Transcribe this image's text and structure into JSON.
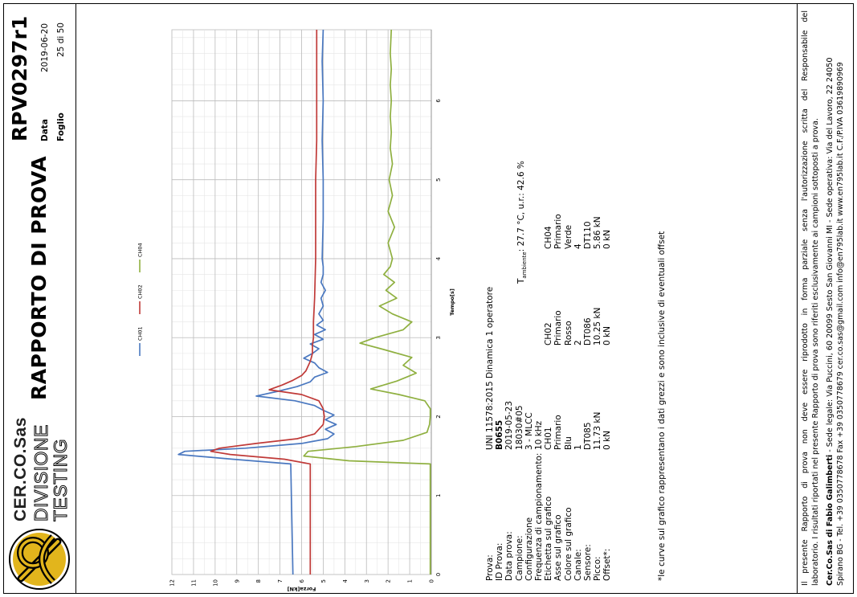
{
  "header": {
    "brand_lines": [
      "CER.CO.Sas",
      "DIVISIONE",
      "TESTING"
    ],
    "title": "RAPPORTO DI PROVA",
    "report_id": "RPV0297r1",
    "data_label": "Data",
    "data_value": "2019-06-20",
    "foglio_label": "Foglio",
    "foglio_value": "25 di 50"
  },
  "info": {
    "labels": [
      "Prova:",
      "ID Prova:",
      "Data prova:",
      "Campione:",
      "Configurazione",
      "Frequenza di campionamento:",
      "Etichetta sul grafico",
      "Asse sul grafico",
      "Colore sul grafico",
      "Canale:",
      "Sensore:",
      "Picco:",
      "Offset*:"
    ],
    "prova": "UNI 11578:2015 Dinamica 1 operatore",
    "id_prova": "B0655",
    "data_prova": "2019-05-23",
    "campione": "18030#05",
    "configurazione": "3 - MLCC",
    "frequenza": "10 kHz",
    "ambient_prefix": "T",
    "ambient_sub": "ambiente",
    "ambient_value": ": 27.7 °C, u.r.: 42.6 %",
    "channels": [
      {
        "etichetta": "CH01",
        "asse": "Primario",
        "colore": "Blu",
        "canale": "1",
        "sensore": "DT085",
        "picco": "11.73 kN",
        "offset": "0 kN"
      },
      {
        "etichetta": "CH02",
        "asse": "Primario",
        "colore": "Rosso",
        "canale": "2",
        "sensore": "DT086",
        "picco": "10.25 kN",
        "offset": "0 kN"
      },
      {
        "etichetta": "CH04",
        "asse": "Primario",
        "colore": "Verde",
        "canale": "4",
        "sensore": "DT110",
        "picco": "5.86 kN",
        "offset": "0 kN"
      }
    ],
    "footnote": "*le curve sul grafico rappresentano i dati grezzi e sono inclusive di eventuali offset"
  },
  "footer": {
    "disclaimer_1": "Il presente Rapporto di prova non deve essere riprodotto in forma parziale senza l'autorizzazione scritta del Responsabile del",
    "disclaimer_2": "laboratorio. I risultati riportati nel presente Rapporto di prova sono riferiti esclusivamente ai campioni sottoposti a prova.",
    "company": "Cer.Co.Sas di Fabio Galimberti",
    "address_1": " - Sede legale: Via Puccini, 60 20099 Sesto San Giovanni MI - Sede operativa: Via del Lavoro, 22  24050",
    "address_2": "Spirano BG - Tel. +39 0350778678 Fax +39 0350778679 cer.co.sas@gmail.com info@en795lab.it www.en795lab.it C.F./P.IVA 03619890969"
  },
  "chart_data": {
    "type": "line",
    "xlabel": "Tempo[s]",
    "ylabel": "Forza[kN]",
    "xlim": [
      0,
      6.9
    ],
    "ylim": [
      0,
      12
    ],
    "xticks": [
      "0",
      "1",
      "2",
      "3",
      "4",
      "5",
      "6"
    ],
    "yticks": [
      "0",
      "1",
      "2",
      "3",
      "4",
      "5",
      "6",
      "7",
      "8",
      "9",
      "10",
      "11",
      "12"
    ],
    "legend_position": "top",
    "grid": true,
    "series": [
      {
        "name": "CH01",
        "color": "#4a78c0",
        "x": [
          0,
          1.4,
          1.46,
          1.52,
          1.56,
          1.6,
          1.66,
          1.72,
          1.78,
          1.84,
          1.9,
          1.96,
          2.02,
          2.08,
          2.14,
          2.2,
          2.26,
          2.32,
          2.38,
          2.44,
          2.5,
          2.56,
          2.62,
          2.68,
          2.74,
          2.8,
          2.86,
          2.92,
          2.98,
          3.04,
          3.1,
          3.16,
          3.22,
          3.3,
          3.4,
          3.5,
          3.6,
          3.7,
          3.8,
          3.9,
          4.0,
          4.5,
          5.0,
          5.5,
          6.0,
          6.5,
          6.9
        ],
        "y": [
          6.4,
          6.5,
          9.2,
          11.7,
          11.4,
          8.6,
          6.0,
          4.8,
          4.5,
          4.9,
          4.4,
          4.9,
          4.5,
          5.0,
          5.4,
          6.3,
          8.1,
          7.1,
          6.2,
          5.6,
          5.4,
          4.8,
          5.2,
          5.4,
          5.9,
          5.5,
          5.2,
          5.6,
          5.0,
          5.4,
          4.9,
          5.3,
          5.0,
          5.2,
          5.0,
          5.1,
          4.9,
          5.1,
          5.0,
          5.0,
          5.05,
          5.0,
          5.0,
          5.05,
          5.0,
          5.05,
          5.0
        ]
      },
      {
        "name": "CH02",
        "color": "#c03a38",
        "x": [
          0,
          1.4,
          1.46,
          1.52,
          1.56,
          1.6,
          1.66,
          1.72,
          1.78,
          1.9,
          2.0,
          2.1,
          2.2,
          2.28,
          2.34,
          2.4,
          2.46,
          2.52,
          2.58,
          2.64,
          2.7,
          2.8,
          2.9,
          3.0,
          3.2,
          3.5,
          4.0,
          4.5,
          5.0,
          5.5,
          6.0,
          6.5,
          6.9
        ],
        "y": [
          5.6,
          5.6,
          6.8,
          9.3,
          10.2,
          9.8,
          8.1,
          6.2,
          5.4,
          5.0,
          4.95,
          5.0,
          5.2,
          6.0,
          7.5,
          6.9,
          6.4,
          6.0,
          5.8,
          5.7,
          5.6,
          5.5,
          5.5,
          5.45,
          5.45,
          5.4,
          5.35,
          5.35,
          5.35,
          5.3,
          5.3,
          5.3,
          5.3
        ]
      },
      {
        "name": "CH04",
        "color": "#8fb040",
        "x": [
          0,
          1.4,
          1.44,
          1.5,
          1.56,
          1.62,
          1.7,
          1.8,
          1.9,
          2.0,
          2.1,
          2.2,
          2.28,
          2.35,
          2.45,
          2.55,
          2.65,
          2.75,
          2.85,
          2.93,
          3.0,
          3.1,
          3.2,
          3.3,
          3.4,
          3.5,
          3.6,
          3.7,
          3.8,
          3.9,
          4.0,
          4.2,
          4.4,
          4.6,
          4.8,
          5.0,
          5.2,
          5.4,
          5.6,
          5.8,
          6.0,
          6.2,
          6.4,
          6.6,
          6.9
        ],
        "y": [
          0.05,
          0.05,
          3.8,
          5.9,
          5.7,
          3.5,
          1.3,
          0.2,
          0.08,
          0.05,
          0.05,
          0.3,
          1.5,
          2.8,
          1.6,
          0.7,
          1.3,
          0.9,
          2.2,
          3.3,
          2.6,
          1.3,
          0.9,
          1.8,
          2.4,
          1.6,
          2.1,
          1.7,
          2.2,
          1.9,
          1.8,
          2.0,
          1.7,
          2.0,
          1.8,
          1.95,
          1.8,
          1.9,
          1.85,
          1.9,
          1.85,
          1.9,
          1.85,
          1.9,
          1.85
        ]
      }
    ]
  }
}
